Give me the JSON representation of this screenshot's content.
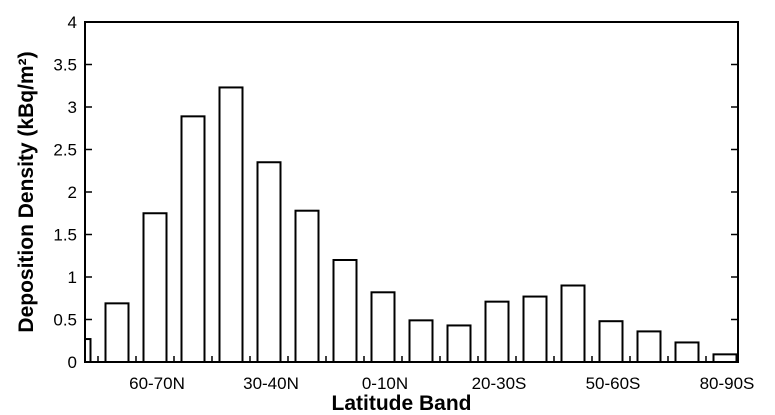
{
  "chart_data": {
    "type": "bar",
    "xlabel": "Latitude Band",
    "ylabel": "Deposition Density (kBq/m²)",
    "ylim": [
      0,
      4
    ],
    "yticks": [
      "0",
      "0.5",
      "1",
      "1.5",
      "2",
      "2.5",
      "3",
      "3.5",
      "4"
    ],
    "grid": false,
    "xtick_labels": [
      "60-70N",
      "30-40N",
      "0-10N",
      "20-30S",
      "50-60S",
      "80-90S"
    ],
    "categories": [
      "80-90N",
      "70-80N",
      "60-70N",
      "50-60N",
      "40-50N",
      "30-40N",
      "20-30N",
      "10-20N",
      "0-10N",
      "0-10S",
      "10-20S",
      "20-30S",
      "30-40S",
      "40-50S",
      "50-60S",
      "60-70S",
      "70-80S",
      "80-90S"
    ],
    "values": [
      0.27,
      0.69,
      1.75,
      2.89,
      3.23,
      2.35,
      1.78,
      1.2,
      0.82,
      0.49,
      0.43,
      0.71,
      0.77,
      0.9,
      0.48,
      0.36,
      0.23,
      0.09
    ]
  }
}
